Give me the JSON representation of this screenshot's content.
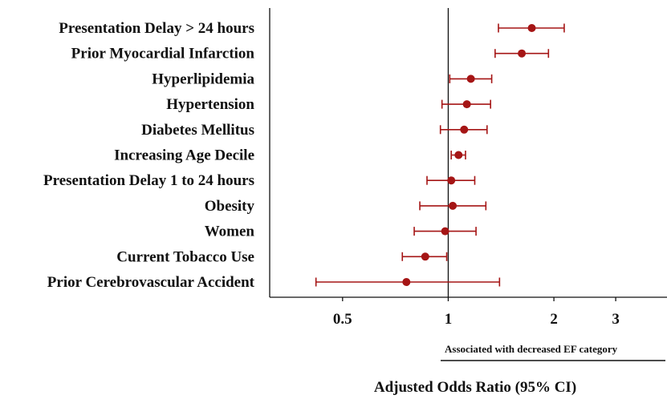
{
  "chart_data": {
    "type": "forest",
    "xlabel": "Adjusted Odds Ratio (95% CI)",
    "xscale": "log",
    "xlim": [
      0.31,
      4.2
    ],
    "reference_line": 1,
    "xticks": [
      0.5,
      1,
      2,
      3
    ],
    "xtick_labels": [
      "0.5",
      "1",
      "2",
      "3"
    ],
    "annotation": "Associated with decreased EF category",
    "marker_color": "#a51515",
    "rows": [
      {
        "label": "Presentation Delay > 24 hours",
        "or": 1.73,
        "lo": 1.39,
        "hi": 2.14
      },
      {
        "label": "Prior Myocardial Infarction",
        "or": 1.62,
        "lo": 1.36,
        "hi": 1.93
      },
      {
        "label": "Hyperlipidemia",
        "or": 1.16,
        "lo": 1.01,
        "hi": 1.33
      },
      {
        "label": "Hypertension",
        "or": 1.13,
        "lo": 0.96,
        "hi": 1.32
      },
      {
        "label": "Diabetes Mellitus",
        "or": 1.11,
        "lo": 0.95,
        "hi": 1.29
      },
      {
        "label": "Increasing Age Decile",
        "or": 1.07,
        "lo": 1.02,
        "hi": 1.12
      },
      {
        "label": "Presentation Delay 1 to 24 hours",
        "or": 1.02,
        "lo": 0.87,
        "hi": 1.19
      },
      {
        "label": "Obesity",
        "or": 1.03,
        "lo": 0.83,
        "hi": 1.28
      },
      {
        "label": "Women",
        "or": 0.98,
        "lo": 0.8,
        "hi": 1.2
      },
      {
        "label": "Current Tobacco Use",
        "or": 0.86,
        "lo": 0.74,
        "hi": 0.99
      },
      {
        "label": "Prior Cerebrovascular Accident",
        "or": 0.76,
        "lo": 0.42,
        "hi": 1.4
      }
    ]
  }
}
